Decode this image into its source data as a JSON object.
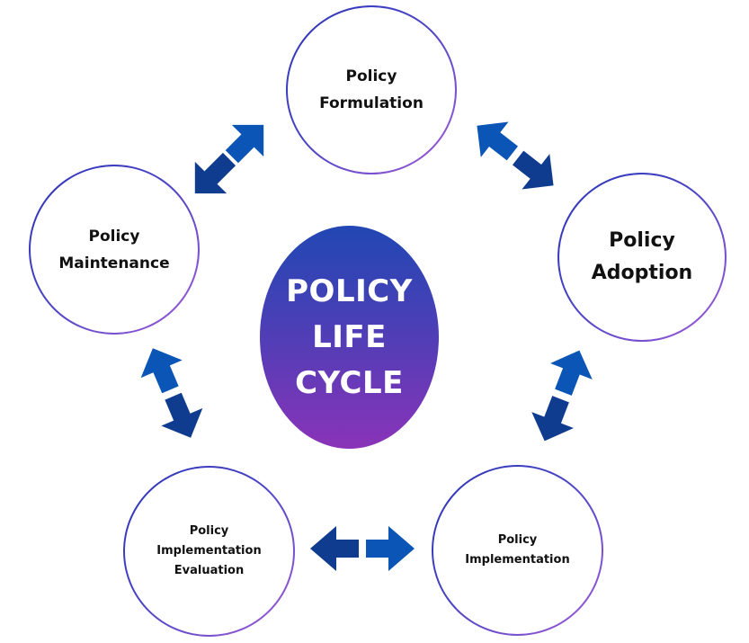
{
  "center": {
    "line1": "POLICY",
    "line2": "LIFE",
    "line3": "CYCLE"
  },
  "nodes": {
    "formulation": {
      "line1": "Policy",
      "line2": "Formulation"
    },
    "adoption": {
      "line1": "Policy",
      "line2": "Adoption"
    },
    "implementation": {
      "line1": "Policy",
      "line2": "Implementation"
    },
    "evaluation": {
      "line1": "Policy",
      "line2": "Implementation",
      "line3": "Evaluation"
    },
    "maintenance": {
      "line1": "Policy",
      "line2": "Maintenance"
    }
  },
  "colors": {
    "arrow_light": "#0a55b5",
    "arrow_dark": "#0f3c8f",
    "ring_start": "#2b33b8",
    "ring_end": "#a45bd8",
    "center_top": "#2147b3",
    "center_bottom": "#8a33b8"
  }
}
